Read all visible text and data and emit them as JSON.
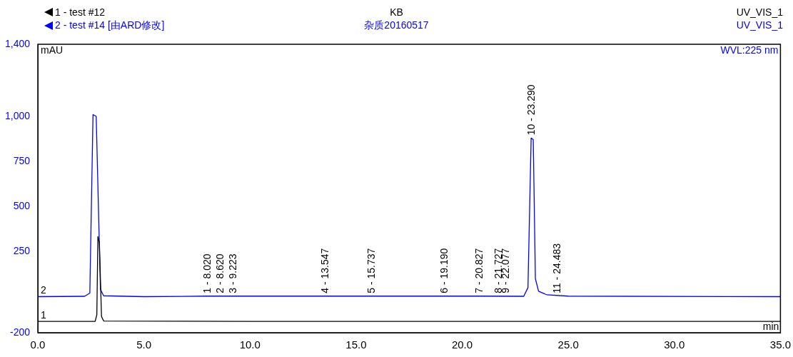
{
  "chart_data": {
    "type": "line",
    "title": "KB",
    "subtitle": "杂质20160517",
    "xlabel": "min",
    "ylabel": "mAU",
    "legend": "top left",
    "marker": "none",
    "line_style": "solid",
    "grid": false,
    "xlim": [
      0,
      35
    ],
    "ylim": [
      -200,
      1400
    ],
    "xticks": [
      {
        "value": 0,
        "label": "0.0"
      },
      {
        "value": 5,
        "label": "5.0"
      },
      {
        "value": 10,
        "label": "10.0"
      },
      {
        "value": 15,
        "label": "15.0"
      },
      {
        "value": 20,
        "label": "20.0"
      },
      {
        "value": 25,
        "label": "25.0"
      },
      {
        "value": 30,
        "label": "30.0"
      },
      {
        "value": 35,
        "label": "35.0"
      }
    ],
    "yticks": [
      {
        "value": -200,
        "label": "-200"
      },
      250,
      500,
      750,
      {
        "value": 1000,
        "label": "1,000"
      },
      {
        "value": 1400,
        "label": "1,400"
      }
    ],
    "series": [
      {
        "name": "1 - test #12",
        "color": "#000000",
        "x": [
          0,
          2.7,
          2.78,
          2.83,
          2.9,
          3.0,
          3.1,
          10,
          20,
          35
        ],
        "values": [
          -137,
          -137,
          -100,
          333,
          300,
          -110,
          -135,
          -137,
          -137,
          -137
        ]
      },
      {
        "name": "2 - test #14 [由ARD修改]",
        "color": "#0000ff",
        "x": [
          0,
          2.2,
          2.45,
          2.6,
          2.75,
          2.95,
          3.1,
          5,
          8.02,
          13.547,
          15.737,
          19.19,
          20.827,
          22.9,
          23.1,
          23.25,
          23.35,
          23.45,
          23.6,
          24.0,
          25,
          35
        ],
        "values": [
          0,
          2,
          20,
          1010,
          1000,
          40,
          5,
          0,
          3,
          3,
          3,
          3,
          3,
          2,
          50,
          880,
          870,
          100,
          30,
          10,
          3,
          0
        ]
      }
    ],
    "annotations": [
      "UV_VIS_1",
      "UV_VIS_1",
      "WVL:225 nm",
      {
        "text": "1",
        "x": 0,
        "y": -137
      },
      {
        "text": "2",
        "x": 0,
        "y": 0
      },
      {
        "text": "1 - 8.020",
        "x": 8.02,
        "y": 3
      },
      {
        "text": "2 - 8.620",
        "x": 8.62,
        "y": 3
      },
      {
        "text": "3 - 9.223",
        "x": 9.223,
        "y": 3
      },
      {
        "text": "4 - 13.547",
        "x": 13.547,
        "y": 3
      },
      {
        "text": "5 - 15.737",
        "x": 15.737,
        "y": 3
      },
      {
        "text": "6 - 19.190",
        "x": 19.19,
        "y": 3
      },
      {
        "text": "7 - 20.827",
        "x": 20.827,
        "y": 3
      },
      {
        "text": "8 - 21.727",
        "x": 21.727,
        "y": 3
      },
      {
        "text": "9 - 22.077",
        "x": 22.077,
        "y": 3
      },
      {
        "text": "10 - 23.290",
        "x": 23.29,
        "y": 880
      },
      {
        "text": "11 - 24.483",
        "x": 24.483,
        "y": 3
      }
    ]
  }
}
